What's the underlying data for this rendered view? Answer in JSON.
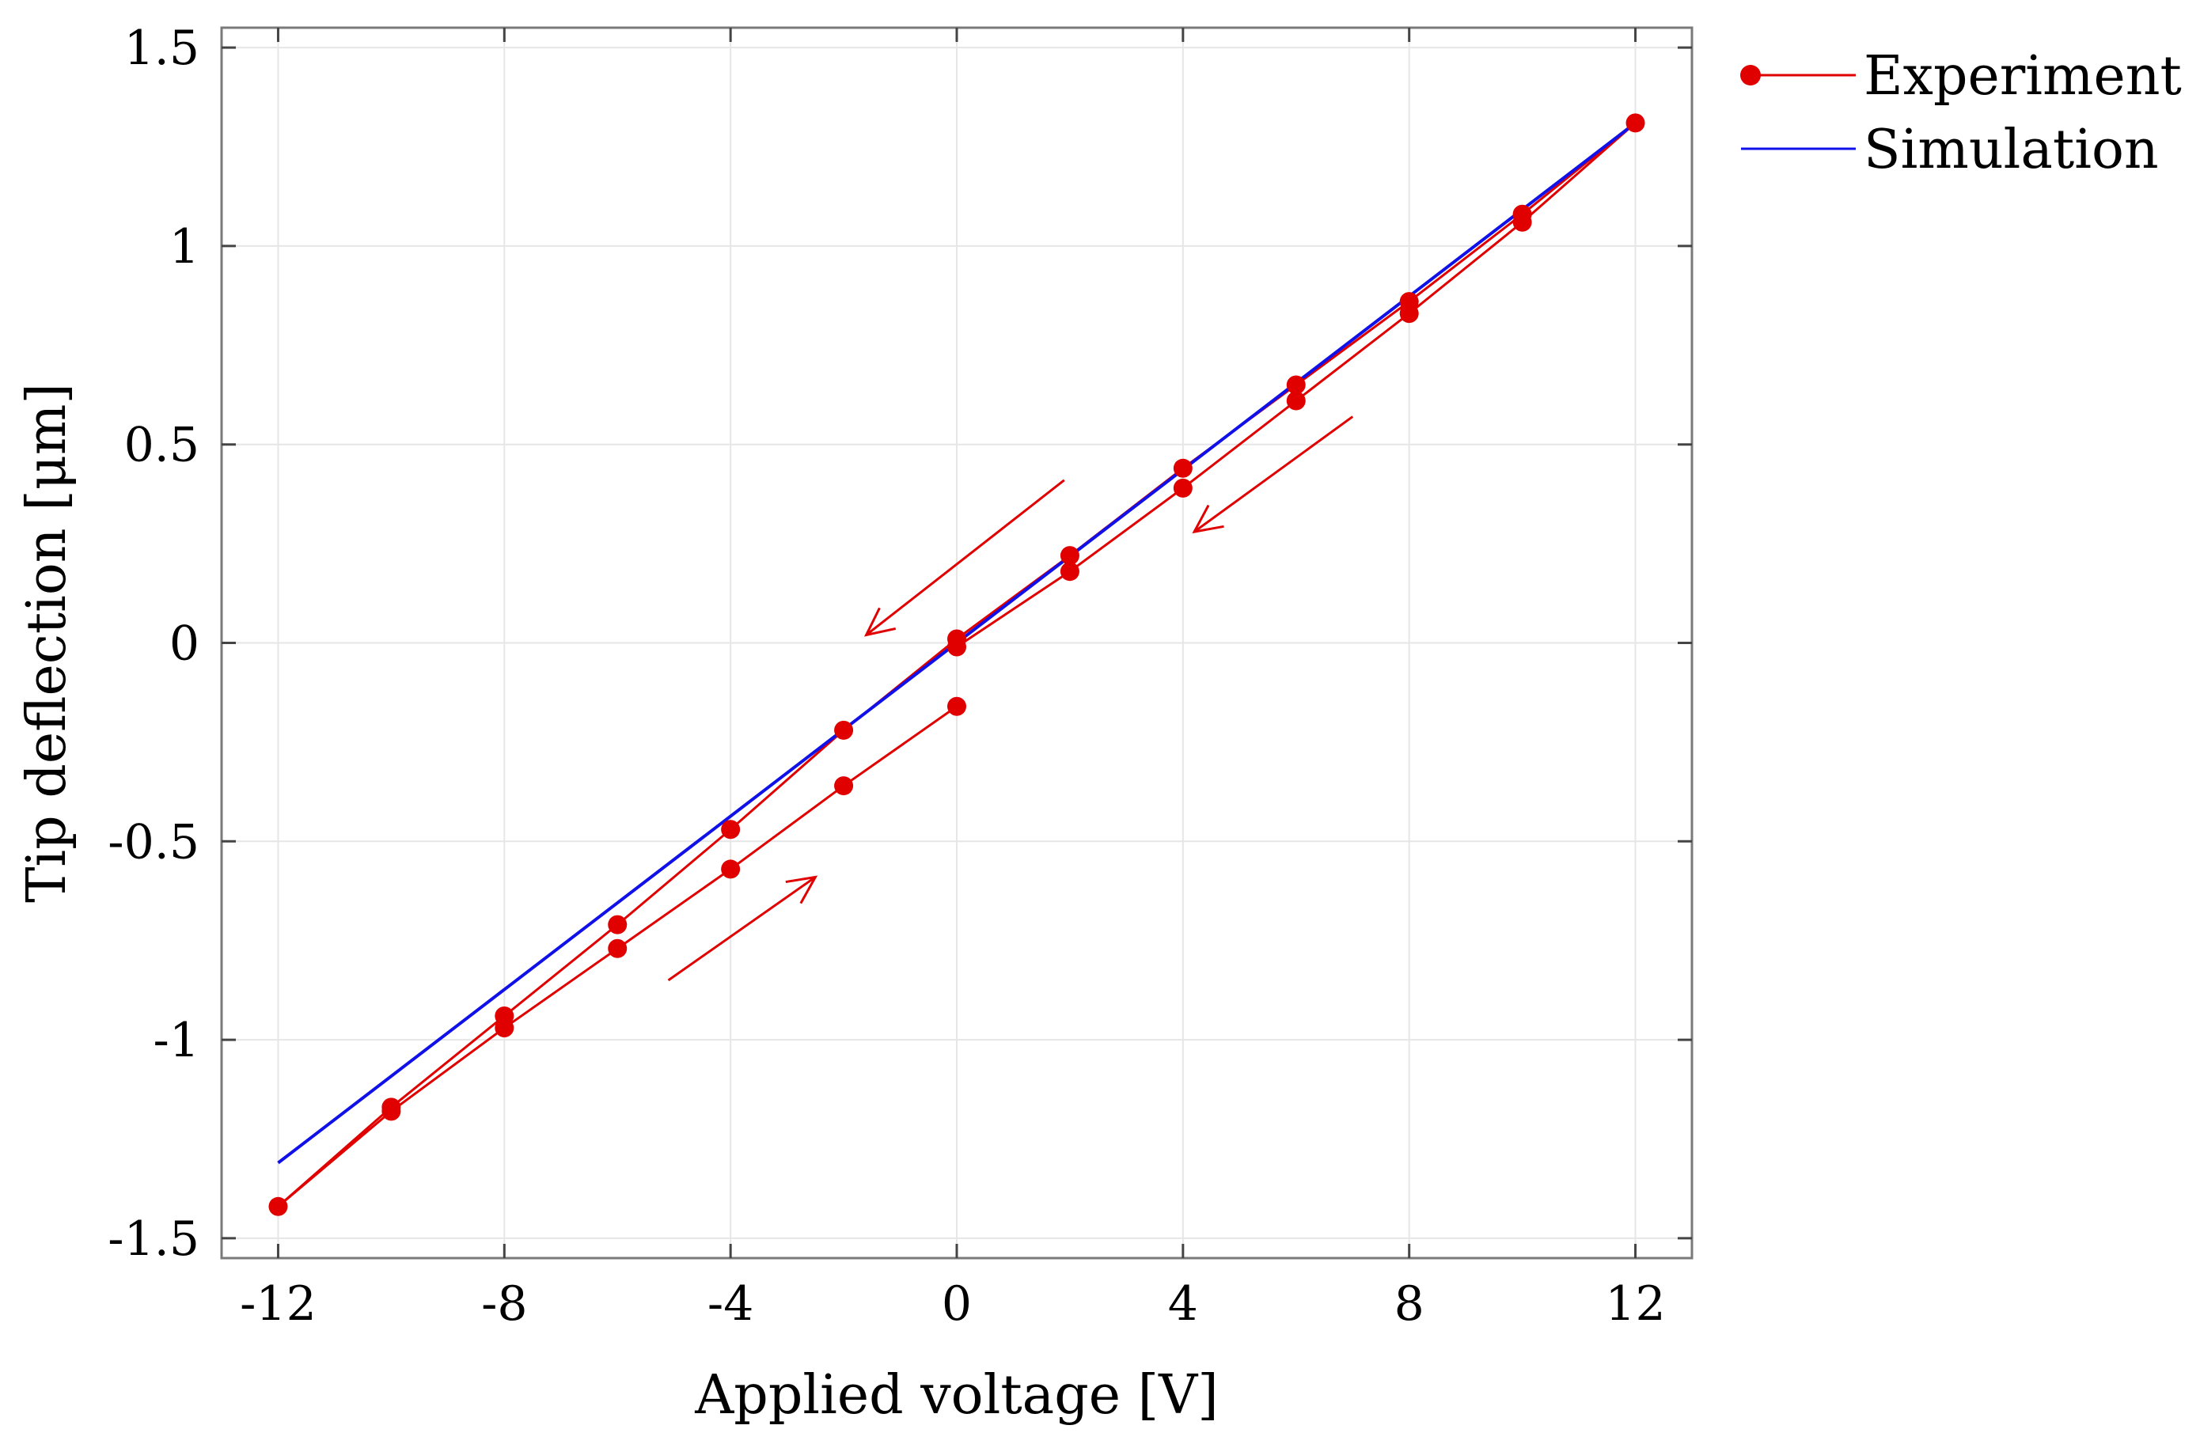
{
  "chart_data": {
    "type": "line",
    "title": "",
    "xlabel": "Applied voltage [V]",
    "ylabel": "Tip deflection [μm]",
    "xlim": [
      -13,
      13
    ],
    "ylim": [
      -1.55,
      1.55
    ],
    "xticks": [
      -12,
      -8,
      -4,
      0,
      4,
      8,
      12
    ],
    "xtick_labels": [
      "-12",
      "-8",
      "-4",
      "0",
      "4",
      "8",
      "12"
    ],
    "yticks": [
      -1.5,
      -1,
      -0.5,
      0,
      0.5,
      1,
      1.5
    ],
    "ytick_labels": [
      "-1.5",
      "-1",
      "-0.5",
      "0",
      "0.5",
      "1",
      "1.5"
    ],
    "grid": true,
    "legend_position": "top-right outside",
    "series": [
      {
        "name": "Experiment",
        "color": "#e00000",
        "marker": "circle",
        "x": [
          0,
          -2,
          -4,
          -6,
          -8,
          -10,
          -12,
          -10,
          -8,
          -6,
          -4,
          -2,
          0,
          2,
          4,
          6,
          8,
          10,
          12,
          10,
          8,
          6,
          4,
          2,
          0
        ],
        "y": [
          -0.16,
          -0.36,
          -0.57,
          -0.77,
          -0.97,
          -1.18,
          -1.42,
          -1.17,
          -0.94,
          -0.71,
          -0.47,
          -0.22,
          0.01,
          0.22,
          0.44,
          0.65,
          0.86,
          1.08,
          1.31,
          1.06,
          0.83,
          0.61,
          0.39,
          0.18,
          -0.01
        ]
      },
      {
        "name": "Simulation",
        "color": "#1010e8",
        "marker": "none",
        "x": [
          -12,
          12
        ],
        "y": [
          -1.31,
          1.31
        ]
      }
    ],
    "annotations": [
      {
        "type": "arrow",
        "from": [
          1.9,
          0.41
        ],
        "to": [
          -1.6,
          0.02
        ],
        "color": "#e00000"
      },
      {
        "type": "arrow",
        "from": [
          7.0,
          0.57
        ],
        "to": [
          4.2,
          0.28
        ],
        "color": "#e00000"
      },
      {
        "type": "arrow",
        "from": [
          -5.1,
          -0.85
        ],
        "to": [
          -2.5,
          -0.59
        ],
        "color": "#e00000"
      }
    ]
  }
}
